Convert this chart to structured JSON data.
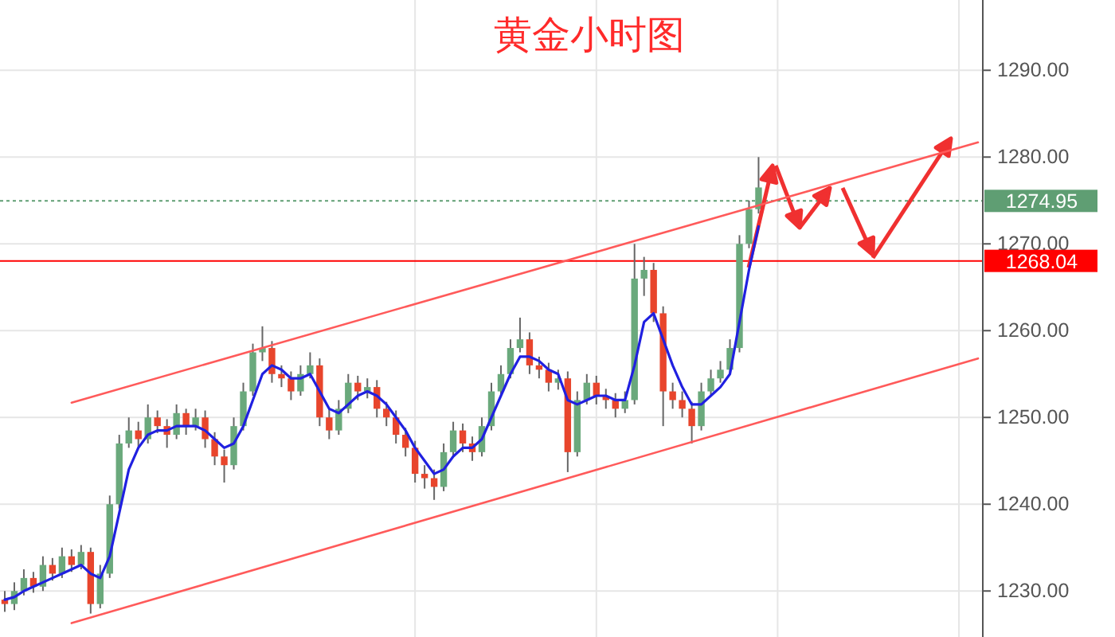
{
  "chart_data": {
    "type": "candlestick",
    "title": "黄金小时图",
    "categories": [
      null,
      null,
      null,
      null,
      null,
      null,
      null,
      null,
      null,
      null,
      null,
      null,
      null,
      null,
      null,
      null,
      null,
      null,
      null,
      null,
      null,
      null,
      null,
      null,
      null,
      null,
      null,
      null,
      null,
      null,
      null,
      null,
      null,
      null,
      null,
      null,
      null,
      null,
      null,
      null,
      null,
      null,
      null,
      null,
      null,
      null,
      null,
      null,
      null,
      null,
      null,
      null,
      null,
      null,
      null,
      null,
      null,
      null,
      null,
      null,
      null,
      null,
      null,
      null,
      null,
      null,
      null,
      null,
      null,
      null,
      null,
      null,
      null,
      null,
      null,
      null,
      null,
      null,
      null,
      null,
      null,
      null,
      null,
      null,
      null,
      null,
      null,
      null,
      null,
      null,
      null,
      null,
      null,
      null,
      null,
      null,
      null,
      null,
      null,
      null,
      null,
      null,
      null
    ],
    "ohlc": [
      [
        1229,
        1230,
        1227.6,
        1228.5
      ],
      [
        1228.5,
        1231,
        1227.8,
        1230
      ],
      [
        1230,
        1232.5,
        1229.5,
        1231.5
      ],
      [
        1231.5,
        1232.2,
        1229.8,
        1230.5
      ],
      [
        1230.5,
        1234,
        1230,
        1233
      ],
      [
        1233,
        1233.8,
        1231.2,
        1232
      ],
      [
        1232,
        1235,
        1231.5,
        1234
      ],
      [
        1234,
        1234.8,
        1232.2,
        1233
      ],
      [
        1233,
        1235.3,
        1232.5,
        1234.5
      ],
      [
        1234.5,
        1235,
        1227.4,
        1228.5
      ],
      [
        1228.5,
        1233,
        1228,
        1232
      ],
      [
        1232,
        1241,
        1231.5,
        1240
      ],
      [
        1240,
        1248,
        1239.5,
        1247
      ],
      [
        1247,
        1250,
        1246.5,
        1248.5
      ],
      [
        1248.5,
        1249.5,
        1246.5,
        1247.5
      ],
      [
        1247.5,
        1251.5,
        1247,
        1250
      ],
      [
        1250,
        1250.8,
        1248.2,
        1249
      ],
      [
        1249,
        1249.8,
        1246.5,
        1248
      ],
      [
        1248,
        1251.5,
        1247.5,
        1250.5
      ],
      [
        1250.5,
        1251,
        1248,
        1249
      ],
      [
        1249,
        1251,
        1248.5,
        1250
      ],
      [
        1250,
        1250.8,
        1246.5,
        1247.5
      ],
      [
        1247.5,
        1248.3,
        1244.5,
        1245.5
      ],
      [
        1245.5,
        1246.3,
        1242.5,
        1244.5
      ],
      [
        1244.5,
        1250,
        1244,
        1249
      ],
      [
        1249,
        1254,
        1248.5,
        1253
      ],
      [
        1253,
        1258.5,
        1252.5,
        1257.5
      ],
      [
        1257.5,
        1260.5,
        1256.5,
        1258
      ],
      [
        1258,
        1258.8,
        1254,
        1255
      ],
      [
        1255,
        1256,
        1253.5,
        1254.5
      ],
      [
        1254.5,
        1255.3,
        1252,
        1253
      ],
      [
        1253,
        1256,
        1252.5,
        1255
      ],
      [
        1255,
        1257.5,
        1254.5,
        1256
      ],
      [
        1256,
        1256.8,
        1249,
        1250
      ],
      [
        1250,
        1251,
        1247.5,
        1248.5
      ],
      [
        1248.5,
        1252,
        1248,
        1251
      ],
      [
        1251,
        1255,
        1250.5,
        1254
      ],
      [
        1254,
        1254.8,
        1252,
        1253
      ],
      [
        1253,
        1254.5,
        1252.2,
        1253.5
      ],
      [
        1253.5,
        1254.3,
        1250,
        1251
      ],
      [
        1251,
        1251.8,
        1249,
        1250
      ],
      [
        1250,
        1250.8,
        1247,
        1248
      ],
      [
        1248,
        1248.8,
        1245.5,
        1246.5
      ],
      [
        1246.5,
        1247.3,
        1242.5,
        1243.5
      ],
      [
        1243.5,
        1244.5,
        1241.8,
        1243
      ],
      [
        1243,
        1244,
        1240.5,
        1242
      ],
      [
        1242,
        1247,
        1241.5,
        1246
      ],
      [
        1246,
        1249.5,
        1245.5,
        1248.5
      ],
      [
        1248.5,
        1249.3,
        1246,
        1247
      ],
      [
        1247,
        1247.8,
        1245,
        1246
      ],
      [
        1246,
        1250,
        1245.5,
        1249
      ],
      [
        1249,
        1254,
        1248.5,
        1253
      ],
      [
        1253,
        1256,
        1252.5,
        1255
      ],
      [
        1255,
        1259,
        1254.5,
        1258
      ],
      [
        1258,
        1261.5,
        1257.5,
        1259
      ],
      [
        1259,
        1259.8,
        1255,
        1256
      ],
      [
        1256,
        1257,
        1254.5,
        1255.5
      ],
      [
        1255.5,
        1256.3,
        1253,
        1254
      ],
      [
        1254,
        1255.5,
        1253.2,
        1254.5
      ],
      [
        1254.5,
        1255.3,
        1243.7,
        1246
      ],
      [
        1246,
        1253,
        1245.5,
        1252
      ],
      [
        1252,
        1255,
        1251.5,
        1254
      ],
      [
        1254,
        1254.8,
        1251.5,
        1252.5
      ],
      [
        1252.5,
        1253.3,
        1251,
        1252
      ],
      [
        1252,
        1252.8,
        1250,
        1251
      ],
      [
        1251,
        1253,
        1250.5,
        1252
      ],
      [
        1252,
        1270,
        1251.5,
        1266
      ],
      [
        1266,
        1268.5,
        1264,
        1267
      ],
      [
        1267,
        1267.8,
        1261,
        1262
      ],
      [
        1262,
        1262.8,
        1249,
        1253
      ],
      [
        1253,
        1254,
        1251,
        1252
      ],
      [
        1252,
        1253,
        1250,
        1251
      ],
      [
        1251,
        1251.8,
        1247,
        1249
      ],
      [
        1249,
        1254,
        1248.5,
        1253
      ],
      [
        1253,
        1255.5,
        1252.5,
        1254.5
      ],
      [
        1254.5,
        1256.5,
        1254,
        1255.5
      ],
      [
        1255.5,
        1259,
        1255,
        1258
      ],
      [
        1258,
        1271,
        1257.5,
        1270
      ],
      [
        1270,
        1275,
        1269.5,
        1274
      ],
      [
        1274,
        1280,
        1273.5,
        1276.5
      ],
      null,
      null,
      null,
      null,
      null,
      null,
      null,
      null,
      null,
      null,
      null,
      null,
      null,
      null,
      null,
      null,
      null,
      null,
      null,
      null,
      null,
      null,
      null
    ],
    "series": [
      {
        "type": "line",
        "color": "#2020e0",
        "values": [
          1229,
          1229.3,
          1230,
          1230.5,
          1231,
          1231.5,
          1232,
          1232.5,
          1233,
          1232,
          1231.5,
          1234,
          1239,
          1244,
          1246.5,
          1248,
          1248.5,
          1248.5,
          1249,
          1249,
          1249,
          1248.5,
          1247.5,
          1246.5,
          1247,
          1249,
          1252,
          1255,
          1256,
          1255.5,
          1254.5,
          1254.5,
          1255,
          1253,
          1251,
          1250.5,
          1251.5,
          1252.5,
          1253,
          1252.5,
          1251.5,
          1250,
          1248.5,
          1246.5,
          1245,
          1243.5,
          1244,
          1245.5,
          1246.5,
          1246.5,
          1247.5,
          1250,
          1252.5,
          1255,
          1257,
          1257,
          1256.5,
          1255.5,
          1255,
          1252,
          1251.5,
          1252,
          1252.5,
          1252.5,
          1252,
          1252,
          1256,
          1261,
          1262,
          1259,
          1256,
          1253.5,
          1251.5,
          1251.5,
          1252.5,
          1253.5,
          1255,
          1261,
          1267,
          1272,
          null,
          null,
          null,
          null,
          null,
          null,
          null,
          null,
          null,
          null,
          null,
          null,
          null,
          null,
          null,
          null,
          null,
          null,
          null,
          null,
          null,
          null,
          null
        ]
      },
      {
        "type": "line",
        "color": "#ff5a5a",
        "values": [
          null,
          null,
          null,
          null,
          null,
          null,
          null,
          1251.7,
          null,
          null,
          null,
          null,
          null,
          null,
          null,
          null,
          null,
          null,
          null,
          null,
          null,
          null,
          null,
          null,
          null,
          null,
          null,
          null,
          null,
          null,
          null,
          null,
          null,
          null,
          null,
          null,
          null,
          null,
          null,
          null,
          null,
          null,
          null,
          null,
          null,
          null,
          null,
          null,
          null,
          null,
          null,
          null,
          null,
          null,
          null,
          null,
          null,
          null,
          null,
          null,
          null,
          null,
          null,
          null,
          null,
          null,
          null,
          null,
          null,
          null,
          null,
          null,
          null,
          null,
          null,
          null,
          null,
          null,
          null,
          null,
          null,
          null,
          null,
          null,
          null,
          null,
          null,
          null,
          null,
          null,
          null,
          null,
          null,
          null,
          null,
          null,
          null,
          null,
          null,
          null,
          null,
          null,
          1281.7
        ]
      },
      {
        "type": "line",
        "color": "#ff5a5a",
        "values": [
          null,
          null,
          null,
          null,
          null,
          null,
          null,
          1226.3,
          null,
          null,
          null,
          null,
          null,
          null,
          null,
          null,
          null,
          null,
          null,
          null,
          null,
          null,
          null,
          null,
          null,
          null,
          null,
          null,
          null,
          null,
          null,
          null,
          null,
          null,
          null,
          null,
          null,
          null,
          null,
          null,
          null,
          null,
          null,
          null,
          null,
          null,
          null,
          null,
          null,
          null,
          null,
          null,
          null,
          null,
          null,
          null,
          null,
          null,
          null,
          null,
          null,
          null,
          null,
          null,
          null,
          null,
          null,
          null,
          null,
          null,
          null,
          null,
          null,
          null,
          null,
          null,
          null,
          null,
          null,
          null,
          null,
          null,
          null,
          null,
          null,
          null,
          null,
          null,
          null,
          null,
          null,
          null,
          null,
          null,
          null,
          null,
          null,
          null,
          null,
          null,
          null,
          null,
          1256.8
        ]
      }
    ],
    "ylim": [
      1224.7,
      1298.1
    ],
    "yticks": [
      {
        "value": 1230,
        "label": "1230.00"
      },
      {
        "value": 1240,
        "label": "1240.00"
      },
      {
        "value": 1250,
        "label": "1250.00"
      },
      {
        "value": 1260,
        "label": "1260.00"
      },
      {
        "value": 1270,
        "label": "1270.00"
      },
      {
        "value": 1280,
        "label": "1280.00"
      },
      {
        "value": 1290,
        "label": "1290.00"
      }
    ],
    "ref_lines": [
      {
        "axis": "y",
        "value": 1274.95,
        "label": "1274.95",
        "color": "#5f9e73",
        "line_style": "dotted"
      },
      {
        "axis": "y",
        "value": 1268.04,
        "label": "1268.04",
        "color": "#ff0000",
        "line_style": "solid"
      }
    ],
    "grid": true,
    "tick_labels": "y"
  }
}
